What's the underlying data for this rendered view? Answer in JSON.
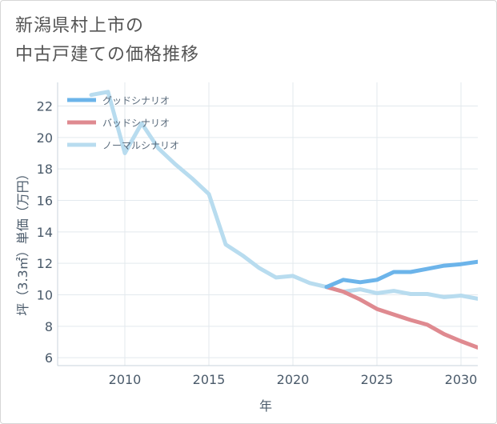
{
  "page": {
    "title_line1": "新潟県村上市の",
    "title_line2": "中古戸建ての価格推移"
  },
  "chart_data": {
    "type": "line",
    "xlabel": "年",
    "ylabel": "坪（3.3㎡）単価（万円）",
    "xlim": [
      2006,
      2031
    ],
    "ylim": [
      5.5,
      23.5
    ],
    "x_ticks": [
      2010,
      2015,
      2020,
      2025,
      2030
    ],
    "y_ticks": [
      6,
      8,
      10,
      12,
      14,
      16,
      18,
      20,
      22
    ],
    "grid": true,
    "legend_position": "top-left",
    "series": [
      {
        "name": "グッドシナリオ",
        "color": "#6cb4ea",
        "x": [
          2022,
          2023,
          2024,
          2025,
          2026,
          2027,
          2028,
          2029,
          2030,
          2031
        ],
        "y": [
          10.5,
          10.95,
          10.8,
          10.95,
          11.45,
          11.45,
          11.65,
          11.85,
          11.95,
          12.1
        ]
      },
      {
        "name": "バッドシナリオ",
        "color": "#df8a90",
        "x": [
          2022,
          2023,
          2024,
          2025,
          2026,
          2027,
          2028,
          2029,
          2030,
          2031
        ],
        "y": [
          10.5,
          10.2,
          9.7,
          9.1,
          8.75,
          8.4,
          8.1,
          7.5,
          7.05,
          6.65
        ]
      },
      {
        "name": "ノーマルシナリオ",
        "color": "#b8dcef",
        "x": [
          2008,
          2009,
          2010,
          2011,
          2012,
          2013,
          2014,
          2015,
          2016,
          2017,
          2018,
          2019,
          2020,
          2021,
          2022,
          2023,
          2024,
          2025,
          2026,
          2027,
          2028,
          2029,
          2030,
          2031
        ],
        "y": [
          22.7,
          22.9,
          19.0,
          20.9,
          19.3,
          18.3,
          17.4,
          16.4,
          13.2,
          12.5,
          11.7,
          11.1,
          11.2,
          10.75,
          10.5,
          10.2,
          10.35,
          10.1,
          10.25,
          10.05,
          10.05,
          9.85,
          9.95,
          9.75
        ]
      }
    ]
  }
}
